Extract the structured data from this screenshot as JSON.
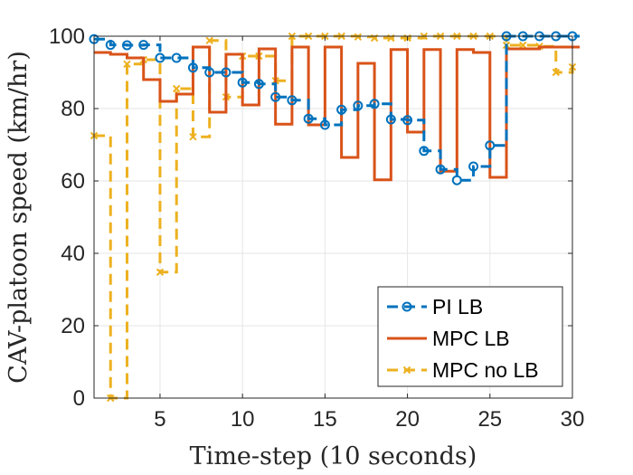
{
  "chart_data": {
    "type": "line",
    "title": "",
    "xlabel": "Time-step (10 seconds)",
    "ylabel": "CAV-platoon speed (km/hr)",
    "xlim": [
      1,
      30
    ],
    "ylim": [
      0,
      100
    ],
    "xticks": [
      5,
      10,
      15,
      20,
      25,
      30
    ],
    "yticks": [
      0,
      20,
      40,
      60,
      80,
      100
    ],
    "grid": true,
    "legend_position": "bottom-right",
    "series": [
      {
        "name": "PI LB",
        "color": "#0072BD",
        "style": "stairs-dash-circle",
        "x": [
          1,
          2,
          3,
          4,
          5,
          6,
          7,
          8,
          9,
          10,
          11,
          12,
          13,
          14,
          15,
          16,
          17,
          18,
          19,
          20,
          21,
          22,
          23,
          24,
          25,
          26,
          27,
          28,
          29,
          30
        ],
        "values": [
          99.2,
          97.6,
          97.5,
          97.6,
          94.0,
          94.0,
          91.3,
          90.0,
          90.0,
          87.2,
          86.8,
          83.2,
          82.3,
          77.2,
          75.5,
          79.7,
          80.8,
          81.3,
          77.0,
          76.8,
          68.3,
          63.2,
          60.2,
          64.0,
          69.8,
          100,
          100,
          100,
          100,
          100
        ]
      },
      {
        "name": "MPC LB",
        "color": "#D95319",
        "style": "stairs-solid",
        "x": [
          1,
          2,
          3,
          4,
          5,
          6,
          7,
          8,
          9,
          10,
          11,
          12,
          13,
          14,
          15,
          16,
          17,
          18,
          19,
          20,
          21,
          22,
          23,
          24,
          25,
          26,
          27,
          28,
          29,
          30
        ],
        "values": [
          95.5,
          95.0,
          94.0,
          88.0,
          82.0,
          84.0,
          97.0,
          79.0,
          95.0,
          81.0,
          96.5,
          75.7,
          97.0,
          75.5,
          97.0,
          66.5,
          92.5,
          60.3,
          96.3,
          73.5,
          96.3,
          62.7,
          96.3,
          95.5,
          61.0,
          96.5,
          96.5,
          97.0,
          97.0,
          97.0
        ]
      },
      {
        "name": "MPC no LB",
        "color": "#EDB120",
        "style": "stairs-dash-x",
        "x": [
          1,
          2,
          3,
          4,
          5,
          6,
          7,
          8,
          9,
          10,
          11,
          12,
          13,
          14,
          15,
          16,
          17,
          18,
          19,
          20,
          21,
          22,
          23,
          24,
          25,
          26,
          27,
          28,
          29,
          30
        ],
        "values": [
          72.5,
          0.0,
          92.3,
          93.5,
          34.8,
          85.5,
          72.2,
          98.8,
          83.2,
          94.5,
          94.5,
          87.7,
          100,
          100,
          100,
          100,
          99.8,
          99.5,
          99.5,
          99.5,
          100,
          100,
          100,
          100,
          100,
          97.5,
          97.5,
          97.2,
          90.0,
          91.5
        ]
      }
    ]
  }
}
